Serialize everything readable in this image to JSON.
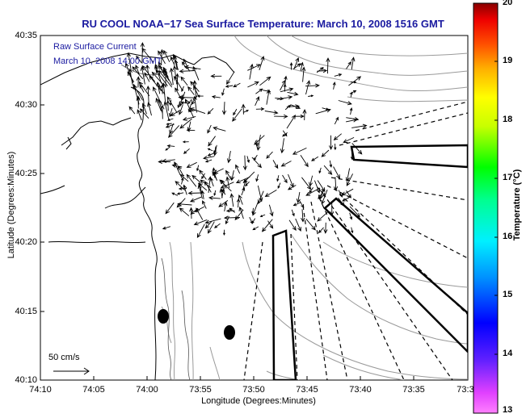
{
  "title": "RU COOL  NOAA−17  Sea Surface Temperature:  March 10, 2008 1516 GMT",
  "legend": {
    "line1": "Raw Surface Current",
    "line2": "March 10, 2008 14:00 GMT"
  },
  "axes": {
    "ylabel": "Latitude (Degrees:Minutes)",
    "xlabel": "Longitude (Degrees:Minutes)",
    "y_ticks": [
      "40:35",
      "40:30",
      "40:25",
      "40:20",
      "40:15",
      "40:10"
    ],
    "x_ticks": [
      "74:10",
      "74:05",
      "74:00",
      "73:55",
      "73:50",
      "73:45",
      "73:40",
      "73:35",
      "73:3"
    ]
  },
  "colorbar": {
    "label": "Temperature (°C)",
    "ticks": [
      "20",
      "19",
      "18",
      "17",
      "16",
      "15",
      "14",
      "13"
    ]
  },
  "scale": {
    "label": "50 cm/s"
  },
  "colors": {
    "title": "#1a1aa0",
    "coast": "#000000",
    "bathymetry": "#999999"
  }
}
